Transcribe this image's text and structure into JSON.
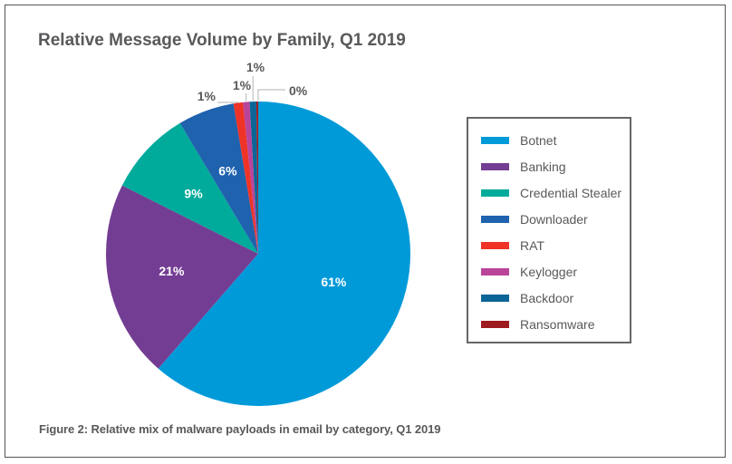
{
  "figure": {
    "caption": "Figure 2: Relative mix of malware payloads in email by category, Q1 2019"
  },
  "chart_data": {
    "type": "pie",
    "title": "Relative Message Volume by Family, Q1 2019",
    "start": "12 o'clock, clockwise",
    "legend_position": "right",
    "slices": [
      {
        "name": "Botnet",
        "value": 61.4,
        "label": "61%",
        "color": "#009ad9",
        "label_style": "inside"
      },
      {
        "name": "Banking",
        "value": 21,
        "label": "21%",
        "color": "#733d93",
        "label_style": "inside"
      },
      {
        "name": "Credential Stealer",
        "value": 9,
        "label": "9%",
        "color": "#00ab9b",
        "label_style": "inside"
      },
      {
        "name": "Downloader",
        "value": 6,
        "label": "6%",
        "color": "#1f62ae",
        "label_style": "inside"
      },
      {
        "name": "RAT",
        "value": 1,
        "label": "1%",
        "color": "#ef3326",
        "label_style": "callout"
      },
      {
        "name": "Keylogger",
        "value": 0.7,
        "label": "1%",
        "color": "#b9449a",
        "label_style": "callout"
      },
      {
        "name": "Backdoor",
        "value": 0.7,
        "label": "1%",
        "color": "#0b6596",
        "label_style": "callout"
      },
      {
        "name": "Ransomware",
        "value": 0.2,
        "label": "0%",
        "color": "#9e1c1f",
        "label_style": "callout"
      }
    ]
  }
}
